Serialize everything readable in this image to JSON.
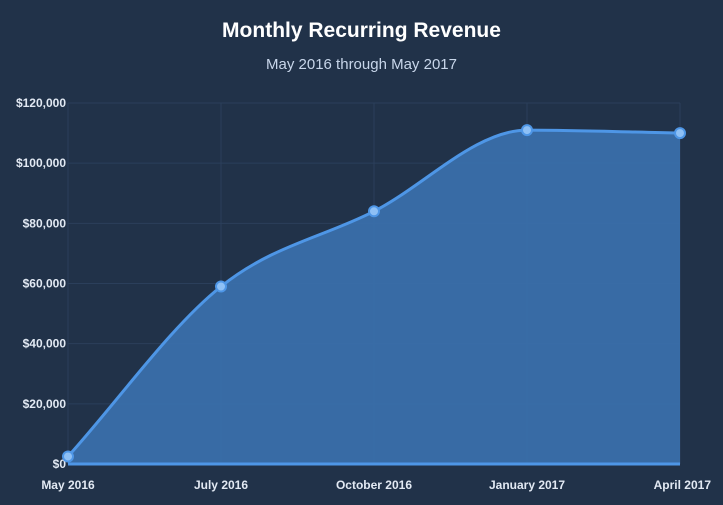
{
  "chart_data": {
    "type": "area",
    "title": "Monthly Recurring Revenue",
    "subtitle": "May 2016 through May 2017",
    "xlabel": "",
    "ylabel": "",
    "x_tick_labels": [
      "May 2016",
      "July 2016",
      "October 2016",
      "January 2017",
      "April 2017"
    ],
    "y_tick_labels": [
      "$0",
      "$20,000",
      "$40,000",
      "$60,000",
      "$80,000",
      "$100,000",
      "$120,000"
    ],
    "ylim": [
      0,
      120000
    ],
    "grid": true,
    "series": [
      {
        "points": [
          {
            "x": "May 2016",
            "y": 2500
          },
          {
            "x": "July 2016",
            "y": 59000
          },
          {
            "x": "October 2016",
            "y": 84000
          },
          {
            "x": "January 2017",
            "y": 111000
          },
          {
            "x": "April 2017",
            "y": 110000
          }
        ]
      }
    ],
    "colors": {
      "background": "#213249",
      "line": "#4e96e6",
      "fill": "#3a6fab",
      "marker_fill": "#8ec0f5",
      "grid": "#2b3f5b"
    }
  }
}
